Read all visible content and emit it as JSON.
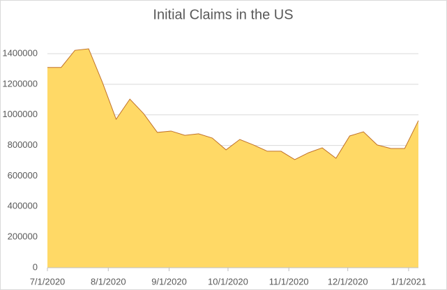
{
  "chart_data": {
    "type": "area",
    "title": "Initial Claims in the US",
    "x": [
      "7/1/2020",
      "7/8/2020",
      "7/15/2020",
      "7/22/2020",
      "7/29/2020",
      "8/5/2020",
      "8/12/2020",
      "8/19/2020",
      "8/26/2020",
      "9/2/2020",
      "9/9/2020",
      "9/16/2020",
      "9/23/2020",
      "9/30/2020",
      "10/7/2020",
      "10/14/2020",
      "10/21/2020",
      "10/28/2020",
      "11/4/2020",
      "11/11/2020",
      "11/18/2020",
      "11/25/2020",
      "12/2/2020",
      "12/9/2020",
      "12/16/2020",
      "12/23/2020",
      "12/30/2020",
      "1/6/2021"
    ],
    "values": [
      1310000,
      1310000,
      1422000,
      1432000,
      1213000,
      971000,
      1103000,
      1008000,
      885000,
      894000,
      866000,
      876000,
      848000,
      771000,
      839000,
      803000,
      762000,
      762000,
      707000,
      752000,
      784000,
      716000,
      862000,
      889000,
      803000,
      780000,
      780000,
      962000
    ],
    "color": "#ffd966",
    "line_color": "#c0712a",
    "xlim": [
      "7/1/2020",
      "1/6/2021"
    ],
    "xticks": [
      "7/1/2020",
      "8/1/2020",
      "9/1/2020",
      "10/1/2020",
      "11/1/2020",
      "12/1/2020",
      "1/1/2021"
    ],
    "ylim": [
      0,
      1400000
    ],
    "yticks": [
      0,
      200000,
      400000,
      600000,
      800000,
      1000000,
      1200000,
      1400000
    ],
    "grid": true
  }
}
